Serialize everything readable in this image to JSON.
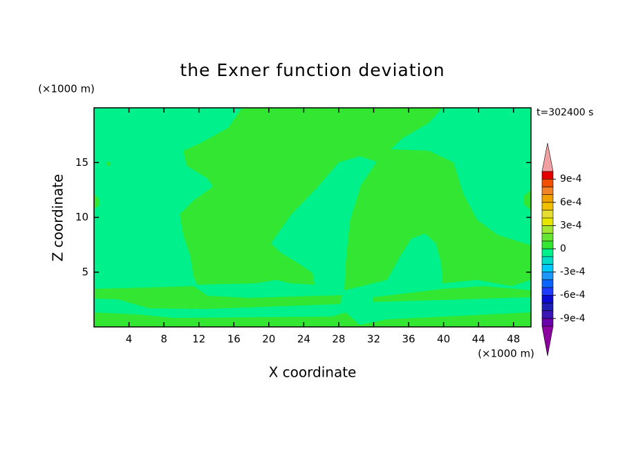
{
  "chart_data": {
    "type": "contour",
    "title": "the Exner function deviation",
    "x_label": "X coordinate",
    "y_label": "Z coordinate",
    "x_unit": "(×1000 m)",
    "y_unit": "(×1000 m)",
    "time_label": "t=302400 s",
    "xlim": [
      0,
      50
    ],
    "ylim": [
      0,
      20
    ],
    "xticks": [
      4,
      8,
      12,
      16,
      20,
      24,
      28,
      32,
      36,
      40,
      44,
      48
    ],
    "yticks": [
      5,
      10,
      15
    ],
    "colorbar": {
      "levels": [
        -0.001,
        -0.0009,
        -0.0008,
        -0.0007,
        -0.0006,
        -0.0005,
        -0.0004,
        -0.0003,
        -0.0002,
        -0.0001,
        0,
        0.0001,
        0.0002,
        0.0003,
        0.0004,
        0.0005,
        0.0006,
        0.0007,
        0.0008,
        0.0009,
        0.001
      ],
      "colors": [
        "#8c00a0",
        "#6a00a8",
        "#3c14b4",
        "#1e1eb4",
        "#0a0ad2",
        "#1e3cff",
        "#0a64ff",
        "#1e96ff",
        "#00c8ff",
        "#00dcc8",
        "#00f08c",
        "#32e632",
        "#64e632",
        "#a0e632",
        "#e6e600",
        "#e6dc32",
        "#f0c000",
        "#f0a000",
        "#f08228",
        "#f05000",
        "#e60000",
        "#f0a0a0"
      ],
      "ticks": [
        {
          "value": 0.0009,
          "label": "9e-4"
        },
        {
          "value": 0.0006,
          "label": "6e-4"
        },
        {
          "value": 0.0003,
          "label": "3e-4"
        },
        0,
        {
          "value": -0.0003,
          "label": "-3e-4"
        },
        {
          "value": -0.0006,
          "label": "-6e-4"
        },
        {
          "value": -0.0009,
          "label": "-9e-4"
        }
      ]
    }
  }
}
